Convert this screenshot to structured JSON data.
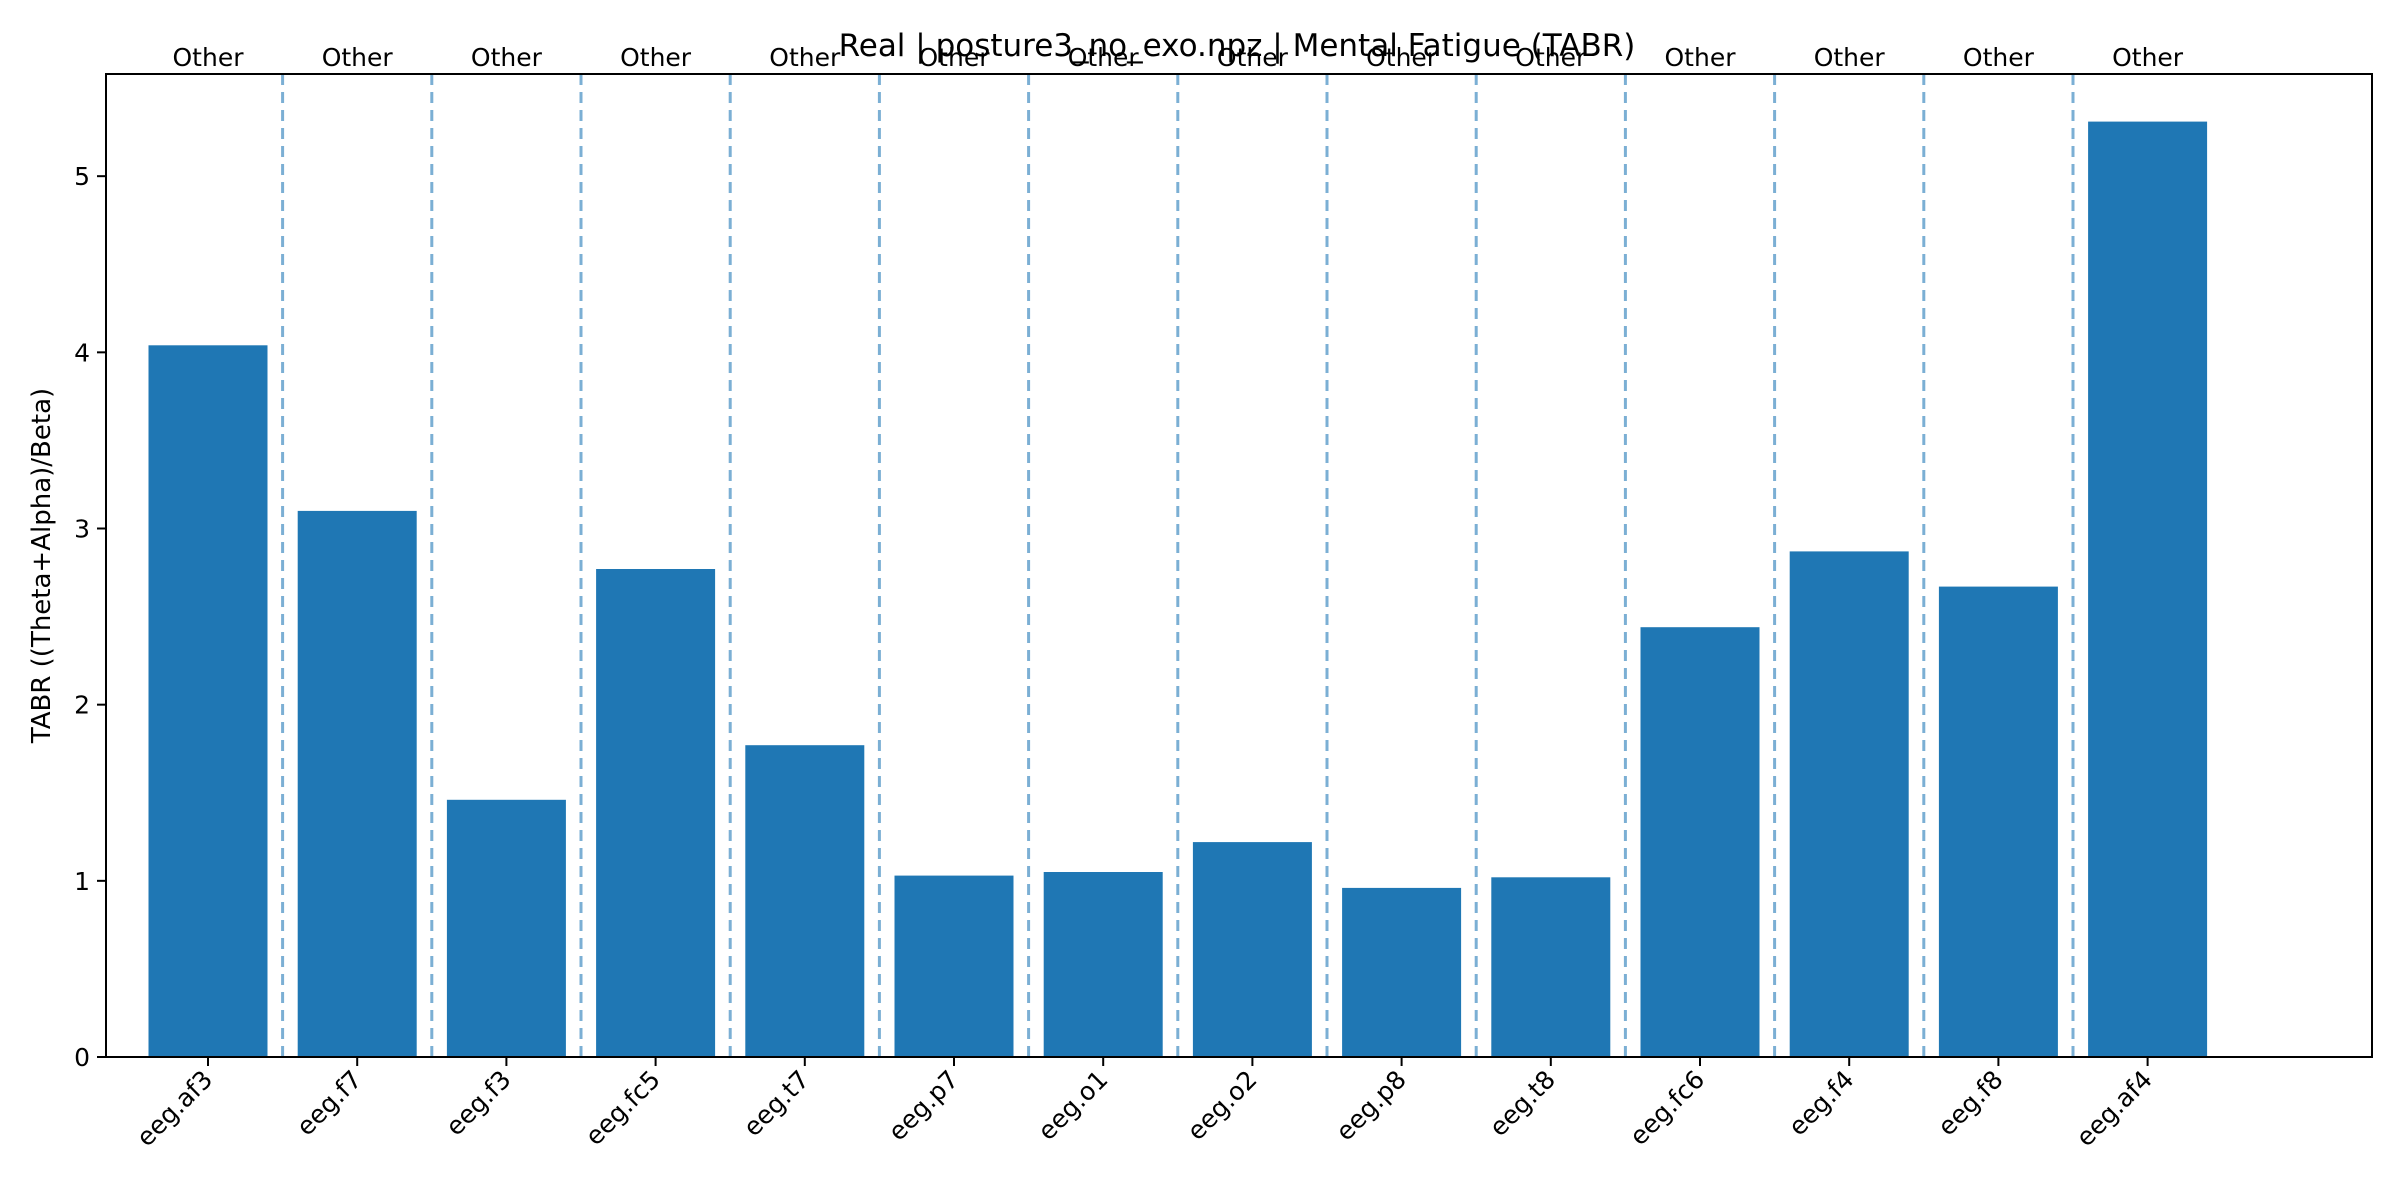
{
  "chart_data": {
    "type": "bar",
    "title": "Real | posture3_no_exo.npz | Mental Fatigue (TABR)",
    "xlabel": "",
    "ylabel": "TABR ((Theta+Alpha)/Beta)",
    "categories": [
      "eeg.af3",
      "eeg.f7",
      "eeg.f3",
      "eeg.fc5",
      "eeg.t7",
      "eeg.p7",
      "eeg.o1",
      "eeg.o2",
      "eeg.p8",
      "eeg.t8",
      "eeg.fc6",
      "eeg.f4",
      "eeg.f8",
      "eeg.af4"
    ],
    "values": [
      4.04,
      3.1,
      1.46,
      2.77,
      1.77,
      1.03,
      1.05,
      1.22,
      0.96,
      1.02,
      2.44,
      2.87,
      2.67,
      5.31
    ],
    "group_labels": [
      "Other",
      "Other",
      "Other",
      "Other",
      "Other",
      "Other",
      "Other",
      "Other",
      "Other",
      "Other",
      "Other",
      "Other",
      "Other",
      "Other"
    ],
    "yticks": [
      0,
      1,
      2,
      3,
      4,
      5
    ],
    "ylim": [
      0,
      5.58
    ],
    "grid": false,
    "colors": {
      "bar": "#1f77b4",
      "separator": "#7bafd4",
      "axis": "#000000"
    }
  }
}
